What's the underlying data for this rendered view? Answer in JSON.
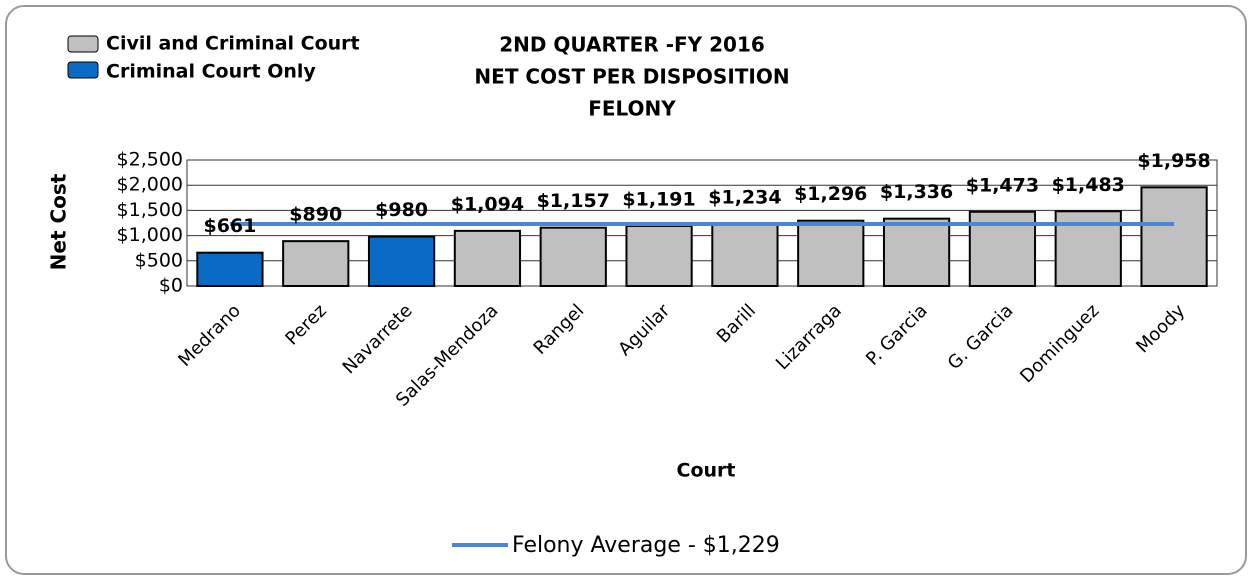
{
  "chart_data": {
    "type": "bar",
    "title": [
      "2ND QUARTER -FY 2016",
      "NET COST PER DISPOSITION",
      "FELONY"
    ],
    "x_label": "Court",
    "y_label": "Net Cost",
    "categories": [
      "Medrano",
      "Perez",
      "Navarrete",
      "Salas-Mendoza",
      "Rangel",
      "Aguilar",
      "Barill",
      "Lizarraga",
      "P. Garcia",
      "G. Garcia",
      "Dominguez",
      "Moody"
    ],
    "values": [
      661,
      890,
      980,
      1094,
      1157,
      1191,
      1234,
      1296,
      1336,
      1473,
      1483,
      1958
    ],
    "value_labels": [
      "$661",
      "$890",
      "$980",
      "$1,094",
      "$1,157",
      "$1,191",
      "$1,234",
      "$1,296",
      "$1,336",
      "$1,473",
      "$1,483",
      "$1,958"
    ],
    "colors": [
      "#0a6bc4",
      "#c0c0c0",
      "#0a6bc4",
      "#c0c0c0",
      "#c0c0c0",
      "#c0c0c0",
      "#c0c0c0",
      "#c0c0c0",
      "#c0c0c0",
      "#c0c0c0",
      "#c0c0c0",
      "#c0c0c0"
    ],
    "legend": [
      {
        "name": "Civil and Criminal Court",
        "color": "#c0c0c0"
      },
      {
        "name": "Criminal Court Only",
        "color": "#0a6bc4"
      }
    ],
    "reference_line": {
      "name": "Felony Average - $1,229",
      "value": 1229,
      "color": "#4a86d8"
    },
    "ylim": [
      0,
      2500
    ],
    "yticks": [
      {
        "value": 0,
        "label": "$0"
      },
      {
        "value": 500,
        "label": "$500"
      },
      {
        "value": 1000,
        "label": "$1,000"
      },
      {
        "value": 1500,
        "label": "$1,500"
      },
      {
        "value": 2000,
        "label": "$2,000"
      },
      {
        "value": 2500,
        "label": "$2,500"
      }
    ],
    "grid": true
  }
}
